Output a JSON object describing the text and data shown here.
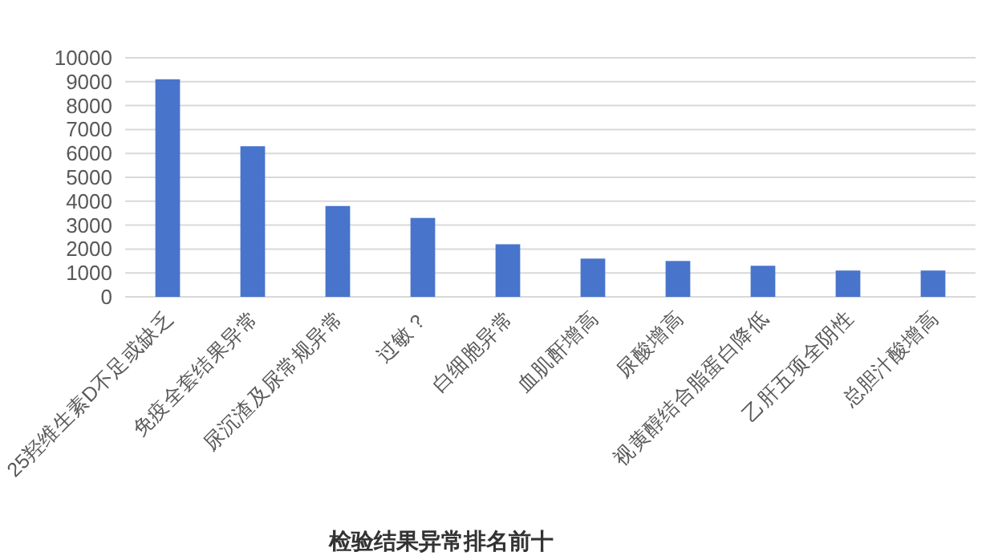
{
  "chart_data": {
    "type": "bar",
    "title": "检验结果异常排名前十",
    "categories": [
      "25羟维生素D不足或缺乏",
      "免疫全套结果异常",
      "尿沉渣及尿常规异常",
      "过敏？",
      "白细胞异常",
      "血肌酐增高",
      "尿酸增高",
      "视黄醇结合脂蛋白降低",
      "乙肝五项全阴性",
      "总胆汁酸增高"
    ],
    "values": [
      9100,
      6300,
      3800,
      3300,
      2200,
      1600,
      1500,
      1300,
      1100,
      1100
    ],
    "color": "#4874cb",
    "ylim": [
      0,
      10000
    ],
    "yticks": [
      0,
      1000,
      2000,
      3000,
      4000,
      5000,
      6000,
      7000,
      8000,
      9000,
      10000
    ],
    "grid": "y"
  }
}
